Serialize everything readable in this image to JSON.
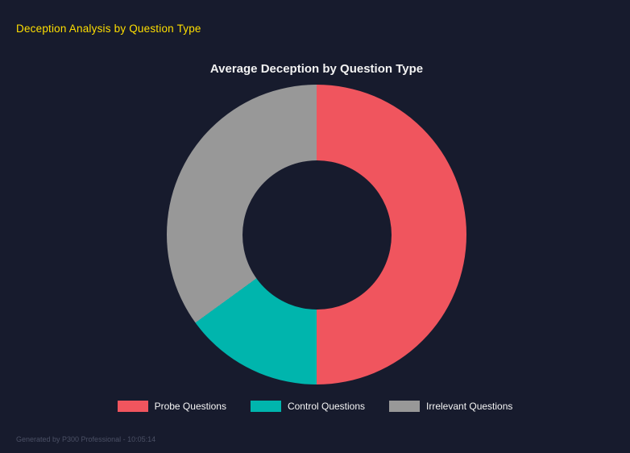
{
  "page": {
    "title": "Deception Analysis by Question Type",
    "title_color": "#ffdf00",
    "footer": "Generated by P300 Professional - 10:05:14"
  },
  "chart_data": {
    "type": "pie",
    "title": "Average Deception by Question Type",
    "categories": [
      "Probe Questions",
      "Control Questions",
      "Irrelevant Questions"
    ],
    "values": [
      50,
      15,
      35
    ],
    "colors": [
      "#f0555e",
      "#00b5ad",
      "#989898"
    ],
    "donut": true,
    "cutout_percent": 50,
    "start_angle_deg": 0,
    "direction": "clockwise",
    "legend_position": "bottom",
    "background": "#171b2d"
  }
}
